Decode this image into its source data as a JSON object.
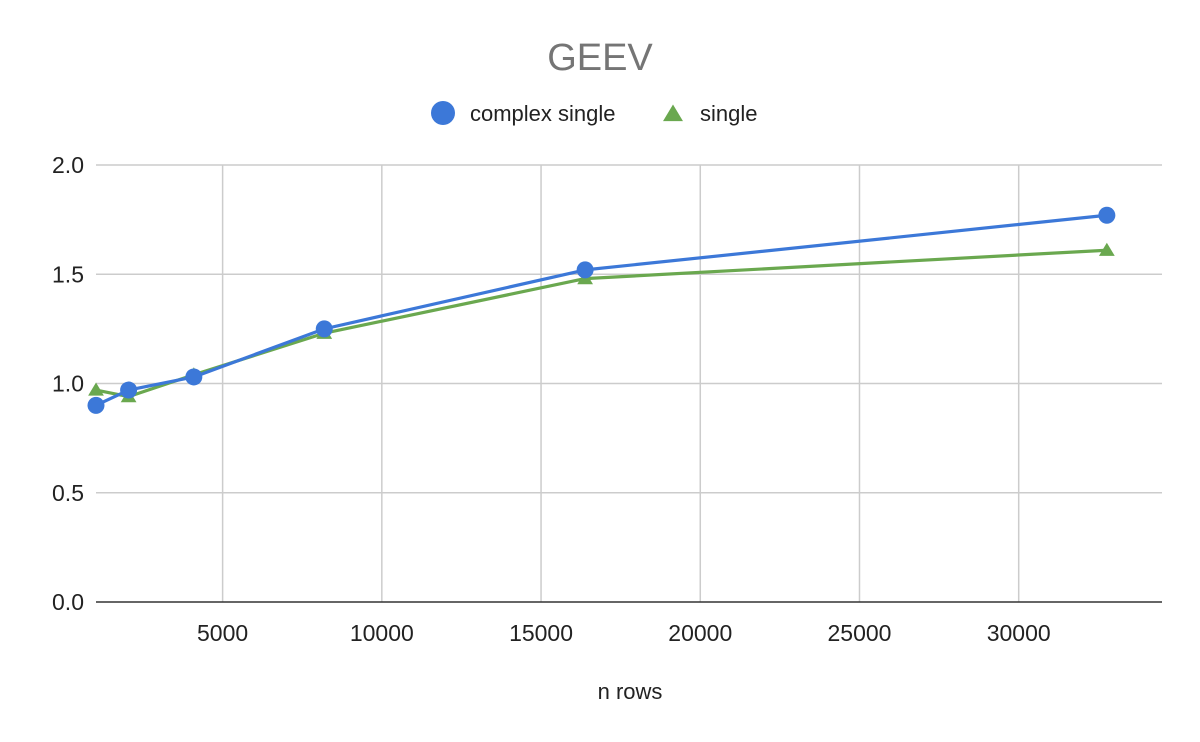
{
  "chart_data": {
    "type": "line",
    "title": "GEEV",
    "xlabel": "n rows",
    "ylabel": "",
    "xlim": [
      1024,
      34500
    ],
    "ylim": [
      0,
      2.0
    ],
    "x_ticks": [
      5000,
      10000,
      15000,
      20000,
      25000,
      30000
    ],
    "y_ticks": [
      0.0,
      0.5,
      1.0,
      1.5,
      2.0
    ],
    "grid": true,
    "legend_position": "top",
    "series": [
      {
        "name": "complex single",
        "marker": "circle",
        "color": "#3c78d8",
        "x": [
          1024,
          2048,
          4096,
          8192,
          16384,
          32768
        ],
        "y": [
          0.9,
          0.97,
          1.03,
          1.25,
          1.52,
          1.77
        ]
      },
      {
        "name": "single",
        "marker": "triangle",
        "color": "#6aa84f",
        "x": [
          1024,
          2048,
          4096,
          8192,
          16384,
          32768
        ],
        "y": [
          0.97,
          0.94,
          1.04,
          1.23,
          1.48,
          1.61
        ]
      }
    ]
  }
}
